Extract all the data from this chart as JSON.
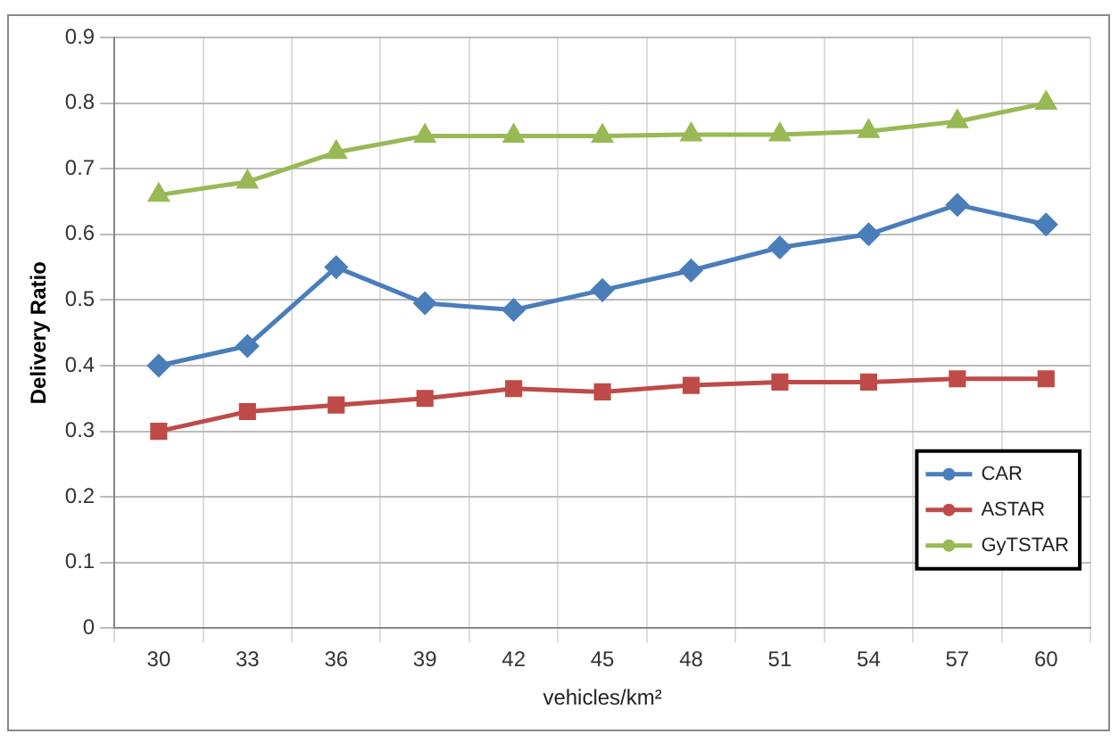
{
  "chart_data": {
    "type": "line",
    "ylabel": "Delivery Ratio",
    "xlabel": "vehicles/km²",
    "categories": [
      "30",
      "33",
      "36",
      "39",
      "42",
      "45",
      "48",
      "51",
      "54",
      "57",
      "60"
    ],
    "series": [
      {
        "name": "CAR",
        "color": "#4a7ebb",
        "marker": "diamond",
        "values": [
          0.4,
          0.43,
          0.55,
          0.495,
          0.485,
          0.515,
          0.545,
          0.58,
          0.6,
          0.645,
          0.615
        ]
      },
      {
        "name": "ASTAR",
        "color": "#be4b48",
        "marker": "square",
        "values": [
          0.3,
          0.33,
          0.34,
          0.35,
          0.365,
          0.36,
          0.37,
          0.375,
          0.375,
          0.38,
          0.38
        ]
      },
      {
        "name": "GyTSTAR",
        "color": "#98b954",
        "marker": "triangle",
        "values": [
          0.66,
          0.68,
          0.725,
          0.75,
          0.75,
          0.75,
          0.752,
          0.752,
          0.757,
          0.772,
          0.8
        ]
      }
    ],
    "ylim": [
      0,
      0.9
    ],
    "yticks": [
      0,
      0.1,
      0.2,
      0.3,
      0.4,
      0.5,
      0.6,
      0.7,
      0.8,
      0.9
    ],
    "grid": true,
    "legend": "right",
    "line_style": "solid"
  }
}
